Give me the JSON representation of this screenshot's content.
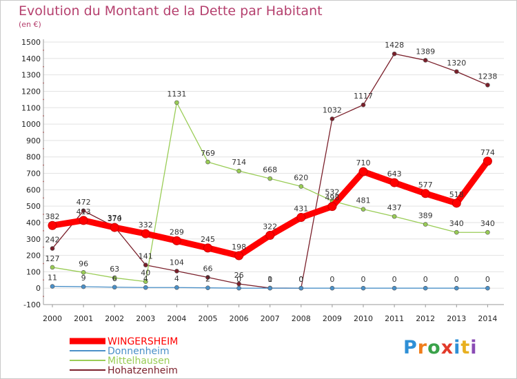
{
  "header": {
    "title": "Evolution du Montant de la Dette par Habitant",
    "unit": "(en €)"
  },
  "logo": {
    "text": "Proxiti",
    "letter_colors": [
      "#2e8fd6",
      "#f07d1a",
      "#3aa24a",
      "#e23a2a",
      "#2e8fd6",
      "#e8b020",
      "#8a4bb5"
    ]
  },
  "chart_data": {
    "type": "line",
    "title": "Evolution du Montant de la Dette par Habitant",
    "ylabel": "(en €)",
    "xlabel": "",
    "ylim": [
      -100,
      1500
    ],
    "yticks": [
      -100,
      0,
      100,
      200,
      300,
      400,
      500,
      600,
      700,
      800,
      900,
      1000,
      1100,
      1200,
      1300,
      1400,
      1500
    ],
    "grid": "horizontal",
    "legend_position": "bottom-left",
    "categories": [
      "2000",
      "2001",
      "2002",
      "2003",
      "2004",
      "2005",
      "2006",
      "2007",
      "2008",
      "2009",
      "2010",
      "2011",
      "2012",
      "2013",
      "2014"
    ],
    "series": [
      {
        "name": "WINGERSHEIM",
        "color": "#ff0000",
        "emphasis": "thick",
        "values": [
          382,
          413,
          370,
          332,
          289,
          245,
          198,
          322,
          431,
          498,
          710,
          643,
          577,
          518,
          774
        ],
        "labels": [
          "382",
          "413",
          "370",
          "332",
          "289",
          "245",
          "198",
          "322",
          "431",
          "498",
          "710",
          "643",
          "577",
          "518",
          "774"
        ]
      },
      {
        "name": "Donnenheim",
        "color": "#4a90c8",
        "emphasis": "normal",
        "values": [
          11,
          9,
          6,
          4,
          4,
          2,
          0,
          0,
          0,
          0,
          0,
          0,
          0,
          0,
          0
        ],
        "labels": [
          "11",
          "9",
          "6",
          "4",
          "4",
          "2",
          "0",
          "0",
          "0",
          "0",
          "0",
          "0",
          "0",
          "0",
          "0"
        ]
      },
      {
        "name": "Mittelhausen",
        "color": "#99cc55",
        "emphasis": "normal",
        "values": [
          127,
          96,
          63,
          40,
          1131,
          769,
          714,
          668,
          620,
          532,
          481,
          437,
          389,
          340,
          340
        ],
        "labels": [
          "127",
          "96",
          "63",
          "40",
          "1131",
          "769",
          "714",
          "668",
          "620",
          "532",
          "481",
          "437",
          "389",
          "340",
          "340"
        ]
      },
      {
        "name": "Hohatzenheim",
        "color": "#7a1f2a",
        "emphasis": "normal",
        "values": [
          242,
          472,
          374,
          141,
          104,
          66,
          26,
          1,
          0,
          1032,
          1117,
          1428,
          1389,
          1320,
          1238
        ],
        "labels": [
          "242",
          "472",
          "374",
          "141",
          "104",
          "66",
          "26",
          "1",
          "0",
          "1032",
          "1117",
          "1428",
          "1389",
          "1320",
          "1238"
        ]
      }
    ]
  }
}
